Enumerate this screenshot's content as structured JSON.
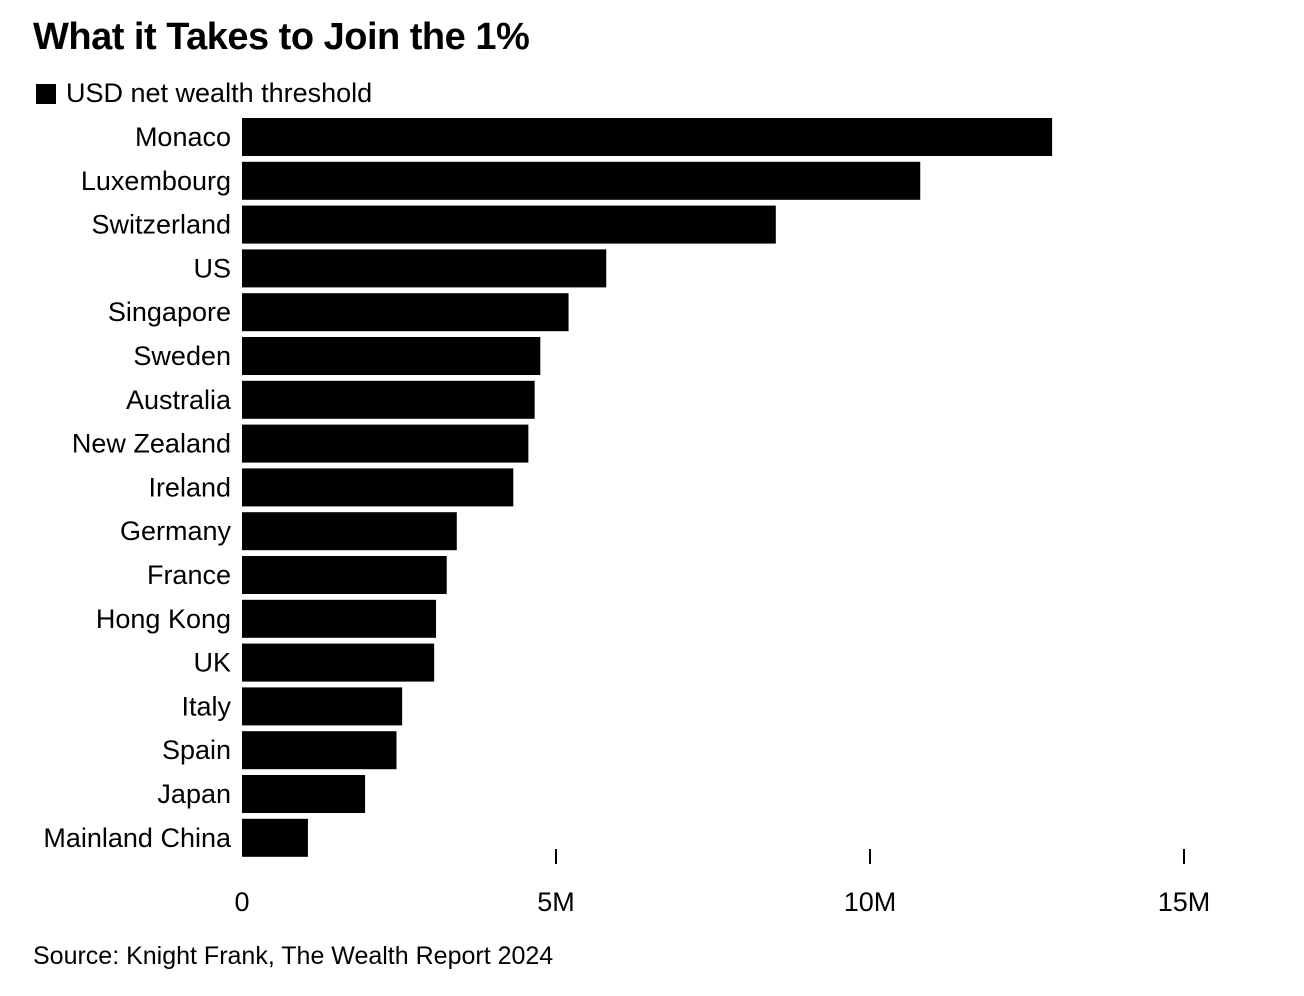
{
  "title": "What it Takes to Join the 1%",
  "legend_label": "USD net wealth threshold",
  "source": "Source: Knight Frank, The Wealth Report 2024",
  "bar_color": "#000000",
  "chart_data": {
    "type": "bar",
    "orientation": "horizontal",
    "categories": [
      "Monaco",
      "Luxembourg",
      "Switzerland",
      "US",
      "Singapore",
      "Sweden",
      "Australia",
      "New Zealand",
      "Ireland",
      "Germany",
      "France",
      "Hong Kong",
      "UK",
      "Italy",
      "Spain",
      "Japan",
      "Mainland China"
    ],
    "series": [
      {
        "name": "USD net wealth threshold",
        "values": [
          12900000,
          10800000,
          8500000,
          5800000,
          5200000,
          4750000,
          4660000,
          4560000,
          4320000,
          3420000,
          3260000,
          3090000,
          3060000,
          2550000,
          2460000,
          1960000,
          1050000
        ]
      }
    ],
    "xlim": [
      0,
      16000000
    ],
    "ticks": [
      0,
      5000000,
      10000000,
      15000000
    ],
    "tick_labels": [
      "0",
      "5M",
      "10M",
      "15M"
    ],
    "xlabel": "",
    "ylabel": "",
    "grid": false,
    "legend_position": "top-left"
  }
}
